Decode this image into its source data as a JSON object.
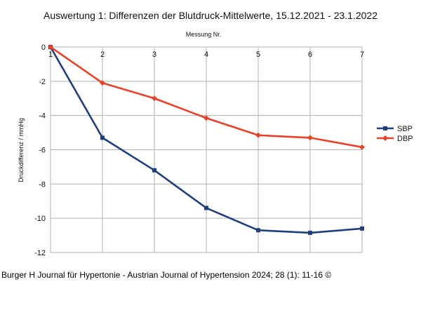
{
  "chart_data": {
    "type": "line",
    "title": "Auswertung 1: Differenzen der Blutdruck-Mittelwerte, 15.12.2021 - 23.1.2022",
    "xlabel": "Messung Nr.",
    "ylabel": "Druckdifferenz / mmHg",
    "x": [
      1,
      2,
      3,
      4,
      5,
      6,
      7
    ],
    "ylim": [
      -12,
      0
    ],
    "yticks": [
      0,
      -2,
      -4,
      -6,
      -8,
      -10,
      -12
    ],
    "grid": true,
    "legend_position": "right",
    "series": [
      {
        "name": "SBP",
        "color": "#1f3f7f",
        "marker": "square",
        "values": [
          0,
          -5.3,
          -7.2,
          -9.4,
          -10.7,
          -10.85,
          -10.6
        ]
      },
      {
        "name": "DBP",
        "color": "#e8422a",
        "marker": "diamond",
        "values": [
          0,
          -2.1,
          -3.0,
          -4.15,
          -5.15,
          -5.3,
          -5.85
        ]
      }
    ]
  },
  "caption": "Burger H Journal für Hypertonie - Austrian Journal of Hypertension 2024; 28 (1): 11-16 ©"
}
